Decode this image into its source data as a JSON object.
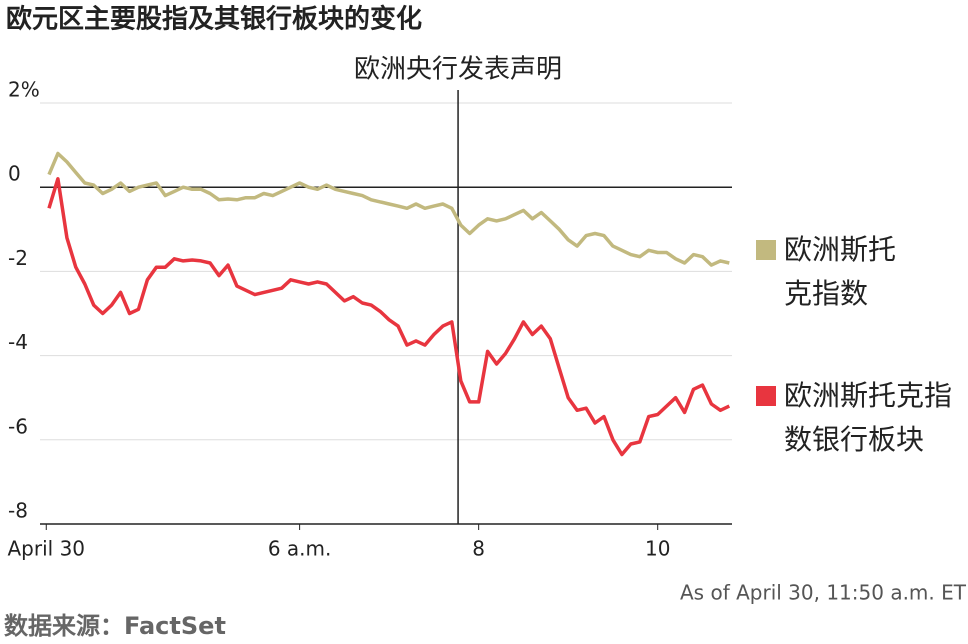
{
  "chart_data": {
    "type": "line",
    "title": "欧元区主要股指及其银行板块的变化",
    "annotation": {
      "text": "欧洲央行发表声明",
      "x": 7.77
    },
    "source": "数据来源：FactSet",
    "note": "As of April 30, 11:50 a.m. ET",
    "x": [
      3.2,
      3.3,
      3.4,
      3.5,
      3.6,
      3.7,
      3.8,
      3.9,
      4.0,
      4.1,
      4.2,
      4.3,
      4.4,
      4.5,
      4.6,
      4.7,
      4.8,
      4.9,
      5.0,
      5.1,
      5.2,
      5.3,
      5.4,
      5.5,
      5.6,
      5.7,
      5.8,
      5.9,
      6.0,
      6.1,
      6.2,
      6.3,
      6.4,
      6.5,
      6.6,
      6.7,
      6.8,
      6.9,
      7.0,
      7.1,
      7.2,
      7.3,
      7.4,
      7.5,
      7.6,
      7.7,
      7.8,
      7.9,
      8.0,
      8.1,
      8.2,
      8.3,
      8.4,
      8.5,
      8.6,
      8.7,
      8.8,
      8.9,
      9.0,
      9.1,
      9.2,
      9.3,
      9.4,
      9.5,
      9.6,
      9.7,
      9.8,
      9.9,
      10.0,
      10.1,
      10.2,
      10.3,
      10.4,
      10.5,
      10.6,
      10.7,
      10.8
    ],
    "series": [
      {
        "name": "欧洲斯托克指数",
        "color": "#c2b97f",
        "values": [
          0.3,
          0.8,
          0.6,
          0.35,
          0.1,
          0.05,
          -0.15,
          -0.05,
          0.1,
          -0.1,
          0,
          0.05,
          0.1,
          -0.2,
          -0.1,
          0,
          -0.05,
          -0.05,
          -0.15,
          -0.3,
          -0.28,
          -0.3,
          -0.25,
          -0.25,
          -0.15,
          -0.2,
          -0.1,
          0,
          0.1,
          0,
          -0.05,
          0.05,
          -0.05,
          -0.1,
          -0.15,
          -0.2,
          -0.3,
          -0.35,
          -0.4,
          -0.45,
          -0.5,
          -0.4,
          -0.5,
          -0.45,
          -0.4,
          -0.5,
          -0.9,
          -1.1,
          -0.9,
          -0.75,
          -0.8,
          -0.75,
          -0.65,
          -0.55,
          -0.75,
          -0.6,
          -0.8,
          -1.0,
          -1.25,
          -1.4,
          -1.15,
          -1.1,
          -1.15,
          -1.4,
          -1.5,
          -1.6,
          -1.65,
          -1.5,
          -1.55,
          -1.55,
          -1.7,
          -1.8,
          -1.6,
          -1.65,
          -1.85,
          -1.75,
          -1.8
        ]
      },
      {
        "name": "欧洲斯托克指数银行板块",
        "color": "#e8353f",
        "values": [
          -0.5,
          0.2,
          -1.2,
          -1.9,
          -2.3,
          -2.8,
          -3.0,
          -2.8,
          -2.5,
          -3.0,
          -2.9,
          -2.2,
          -1.9,
          -1.9,
          -1.7,
          -1.75,
          -1.73,
          -1.75,
          -1.8,
          -2.1,
          -1.85,
          -2.35,
          -2.45,
          -2.55,
          -2.5,
          -2.45,
          -2.4,
          -2.2,
          -2.25,
          -2.3,
          -2.25,
          -2.3,
          -2.5,
          -2.7,
          -2.6,
          -2.75,
          -2.8,
          -2.95,
          -3.15,
          -3.3,
          -3.75,
          -3.65,
          -3.75,
          -3.5,
          -3.3,
          -3.2,
          -4.6,
          -5.1,
          -5.1,
          -3.9,
          -4.2,
          -3.95,
          -3.6,
          -3.2,
          -3.5,
          -3.3,
          -3.6,
          -4.3,
          -5.0,
          -5.3,
          -5.25,
          -5.6,
          -5.45,
          -6.0,
          -6.35,
          -6.1,
          -6.05,
          -5.45,
          -5.4,
          -5.2,
          -5.0,
          -5.35,
          -4.8,
          -4.7,
          -5.15,
          -5.3,
          -5.2
        ]
      }
    ],
    "xlim": [
      3.1,
      10.83
    ],
    "xticks": [
      {
        "value": 3.17,
        "label": "April 30"
      },
      {
        "value": 6,
        "label": "6 a.m."
      },
      8,
      10
    ],
    "ylim": [
      -8,
      2
    ],
    "yticks": [
      {
        "value": 2,
        "label": "2%"
      },
      0,
      -2,
      -4,
      -6,
      -8
    ],
    "grid": true,
    "legend": "right"
  }
}
